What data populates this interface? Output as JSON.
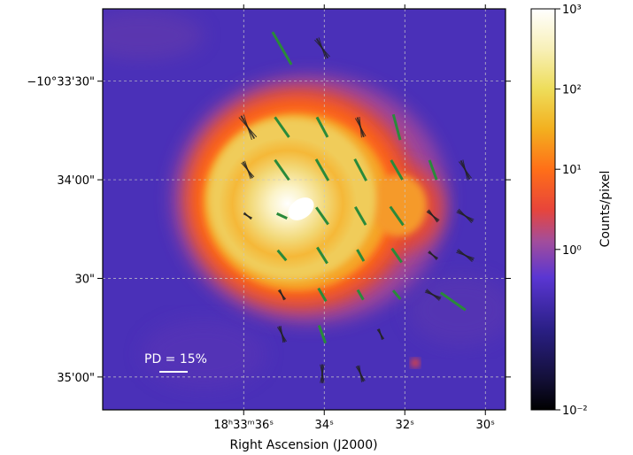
{
  "chart_data": {
    "type": "heatmap",
    "title": "",
    "xlabel": "Right Ascension (J2000)",
    "ylabel": "",
    "colorbar_label": "Counts/pixel",
    "colormap": "CMRmap",
    "colorbar_scale": "log",
    "colorbar_range": [
      0.01,
      1000
    ],
    "colorbar_ticks": [
      {
        "value": 0.01,
        "label": "10⁻²"
      },
      {
        "value": 1,
        "label": "10⁰"
      },
      {
        "value": 10,
        "label": "10¹"
      },
      {
        "value": 100,
        "label": "10²"
      },
      {
        "value": 1000,
        "label": "10³"
      }
    ],
    "x_ticks": [
      {
        "ra_s": 36,
        "label": "18ʰ33ᵐ36ˢ"
      },
      {
        "ra_s": 34,
        "label": "34ˢ"
      },
      {
        "ra_s": 32,
        "label": "32ˢ"
      },
      {
        "ra_s": 30,
        "label": "30ˢ"
      }
    ],
    "y_ticks": [
      {
        "dec_arcsec": 0,
        "label": "−10°33'30\""
      },
      {
        "dec_arcsec": 30,
        "label": "34'00\""
      },
      {
        "dec_arcsec": 60,
        "label": "30\""
      },
      {
        "dec_arcsec": 90,
        "label": "35'00\""
      }
    ],
    "xlim_ra_s": [
      39.5,
      29.5
    ],
    "ylim_dec_offset_arcsec": [
      -22,
      100
    ],
    "grid": true,
    "scale_bar_label": "PD = 15%",
    "scale_bar_pd": 15,
    "pol_vectors": [
      {
        "ra": 35.05,
        "dec": -10,
        "pd": 20,
        "pa": 30,
        "sig": "high"
      },
      {
        "ra": 34.05,
        "dec": -10,
        "pd": 12,
        "pa": 30,
        "sig": "low"
      },
      {
        "ra": 35.9,
        "dec": 14,
        "pd": 14,
        "pa": 30,
        "sig": "low"
      },
      {
        "ra": 35.05,
        "dec": 14,
        "pd": 13,
        "pa": 35,
        "sig": "high"
      },
      {
        "ra": 34.05,
        "dec": 14,
        "pd": 12,
        "pa": 28,
        "sig": "high"
      },
      {
        "ra": 33.1,
        "dec": 14,
        "pd": 11,
        "pa": 18,
        "sig": "low"
      },
      {
        "ra": 32.2,
        "dec": 14,
        "pd": 14,
        "pa": 15,
        "sig": "high"
      },
      {
        "ra": 35.9,
        "dec": 27,
        "pd": 10,
        "pa": 30,
        "sig": "low"
      },
      {
        "ra": 35.05,
        "dec": 27,
        "pd": 13,
        "pa": 35,
        "sig": "high"
      },
      {
        "ra": 34.05,
        "dec": 27,
        "pd": 13,
        "pa": 30,
        "sig": "high"
      },
      {
        "ra": 33.1,
        "dec": 27,
        "pd": 13,
        "pa": 28,
        "sig": "high"
      },
      {
        "ra": 32.2,
        "dec": 27,
        "pd": 12,
        "pa": 30,
        "sig": "high"
      },
      {
        "ra": 31.3,
        "dec": 27,
        "pd": 11,
        "pa": 20,
        "sig": "high"
      },
      {
        "ra": 30.5,
        "dec": 27,
        "pd": 11,
        "pa": 25,
        "sig": "low"
      },
      {
        "ra": 35.9,
        "dec": 41,
        "pd": 5,
        "pa": 55,
        "sig": "low"
      },
      {
        "ra": 35.05,
        "dec": 41,
        "pd": 6,
        "pa": 65,
        "sig": "high"
      },
      {
        "ra": 34.05,
        "dec": 41,
        "pd": 11,
        "pa": 35,
        "sig": "high"
      },
      {
        "ra": 33.1,
        "dec": 41,
        "pd": 11,
        "pa": 30,
        "sig": "high"
      },
      {
        "ra": 32.2,
        "dec": 41,
        "pd": 12,
        "pa": 35,
        "sig": "high"
      },
      {
        "ra": 31.3,
        "dec": 41,
        "pd": 8,
        "pa": 45,
        "sig": "low"
      },
      {
        "ra": 30.5,
        "dec": 41,
        "pd": 10,
        "pa": 55,
        "sig": "low"
      },
      {
        "ra": 35.05,
        "dec": 53,
        "pd": 7,
        "pa": 40,
        "sig": "high"
      },
      {
        "ra": 34.05,
        "dec": 53,
        "pd": 10,
        "pa": 32,
        "sig": "high"
      },
      {
        "ra": 33.1,
        "dec": 53,
        "pd": 7,
        "pa": 30,
        "sig": "high"
      },
      {
        "ra": 32.2,
        "dec": 53,
        "pd": 9,
        "pa": 35,
        "sig": "high"
      },
      {
        "ra": 31.3,
        "dec": 53,
        "pd": 6,
        "pa": 50,
        "sig": "low"
      },
      {
        "ra": 30.5,
        "dec": 53,
        "pd": 10,
        "pa": 60,
        "sig": "low"
      },
      {
        "ra": 35.05,
        "dec": 65,
        "pd": 6,
        "pa": 30,
        "sig": "low"
      },
      {
        "ra": 34.05,
        "dec": 65,
        "pd": 8,
        "pa": 30,
        "sig": "high"
      },
      {
        "ra": 33.1,
        "dec": 65,
        "pd": 6,
        "pa": 30,
        "sig": "high"
      },
      {
        "ra": 32.2,
        "dec": 65,
        "pd": 6,
        "pa": 40,
        "sig": "high"
      },
      {
        "ra": 31.3,
        "dec": 65,
        "pd": 9,
        "pa": 60,
        "sig": "low"
      },
      {
        "ra": 30.8,
        "dec": 67,
        "pd": 16,
        "pa": 55,
        "sig": "high"
      },
      {
        "ra": 35.05,
        "dec": 77,
        "pd": 9,
        "pa": 20,
        "sig": "low"
      },
      {
        "ra": 34.05,
        "dec": 77,
        "pd": 10,
        "pa": 20,
        "sig": "high"
      },
      {
        "ra": 32.6,
        "dec": 77,
        "pd": 6,
        "pa": 25,
        "sig": "low"
      },
      {
        "ra": 34.05,
        "dec": 89,
        "pd": 10,
        "pa": 0,
        "sig": "low"
      },
      {
        "ra": 33.1,
        "dec": 89,
        "pd": 9,
        "pa": 20,
        "sig": "low"
      }
    ],
    "colors": {
      "background": "#4a30b8",
      "significant_vector": "#2a8a3a",
      "low_sig_vector": "#222222",
      "grid": "#c8c8c8",
      "scale_bar": "#ffffff"
    }
  }
}
